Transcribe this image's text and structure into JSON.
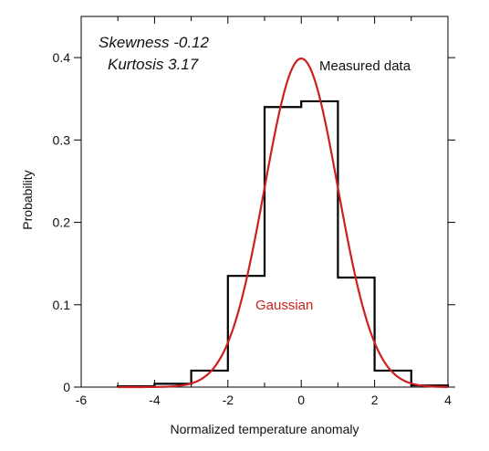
{
  "chart_data": {
    "type": "line",
    "xlabel": "Normalized temperature anomaly",
    "ylabel": "Probability",
    "xlim": [
      -6,
      4
    ],
    "ylim": [
      0,
      0.45
    ],
    "x_ticks": [
      -6,
      -4,
      -2,
      0,
      2,
      4
    ],
    "x_tick_labels": [
      "-6",
      "-4",
      "-2",
      "0",
      "2",
      "4"
    ],
    "y_ticks": [
      0,
      0.1,
      0.2,
      0.3,
      0.4
    ],
    "y_tick_labels": [
      "0",
      "0.1",
      "0.2",
      "0.3",
      "0.4"
    ],
    "grid": false,
    "annotations": {
      "skewness": "Skewness  -0.12",
      "kurtosis": "Kurtosis  3.17"
    },
    "series": [
      {
        "name": "Measured data",
        "kind": "step-histogram",
        "color": "#000000",
        "bin_edges": [
          -5,
          -4,
          -3,
          -2,
          -1,
          0,
          1,
          2,
          3,
          4
        ],
        "values": [
          0.001,
          0.004,
          0.02,
          0.135,
          0.34,
          0.347,
          0.133,
          0.02,
          0.002
        ]
      },
      {
        "name": "Gaussian",
        "kind": "curve",
        "color": "#cc1f1f",
        "mean": 0,
        "std": 1,
        "x_range": [
          -5,
          4
        ]
      }
    ]
  }
}
